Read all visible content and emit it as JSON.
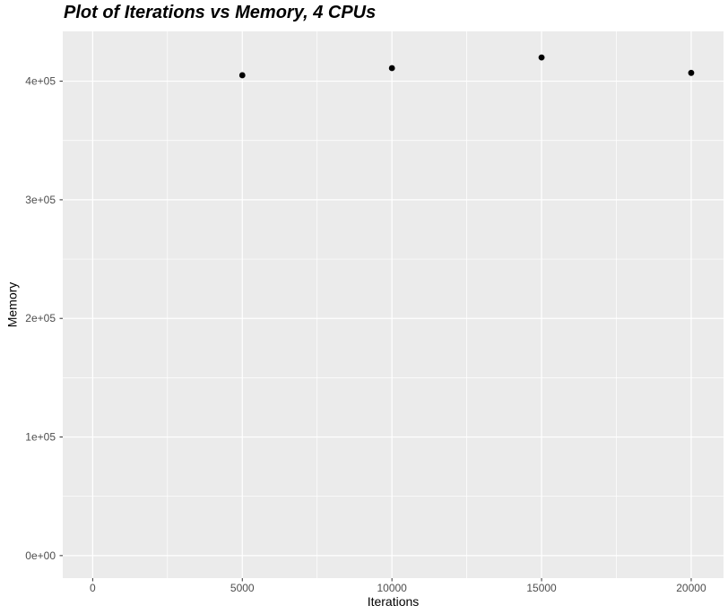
{
  "chart_data": {
    "type": "scatter",
    "title": "Plot of Iterations vs Memory, 4 CPUs",
    "xlabel": "Iterations",
    "ylabel": "Memory",
    "series": [
      {
        "name": "Memory",
        "points": [
          [
            5000,
            405000
          ],
          [
            10000,
            411000
          ],
          [
            15000,
            420000
          ],
          [
            20000,
            407000
          ]
        ]
      }
    ],
    "x_tick_values": [
      0,
      5000,
      10000,
      15000,
      20000
    ],
    "x_tick_labels": [
      "0",
      "5000",
      "10000",
      "15000",
      "20000"
    ],
    "y_tick_values": [
      0,
      100000,
      200000,
      300000,
      400000
    ],
    "y_tick_labels": [
      "0e+00",
      "1e+05",
      "2e+05",
      "3e+05",
      "4e+05"
    ],
    "x_minor_values": [
      2500,
      7500,
      12500,
      17500
    ],
    "y_minor_values": [
      50000,
      150000,
      250000,
      350000
    ],
    "xlim": [
      -1000,
      21080
    ],
    "ylim": [
      -19000,
      442000
    ],
    "grid": "major+minor",
    "legend": "none",
    "colors": {
      "panel_bg": "#EBEBEB",
      "grid": "#FFFFFF",
      "point": "#000000",
      "axis_text": "#4D4D4D",
      "tick_mark": "#333333"
    }
  }
}
